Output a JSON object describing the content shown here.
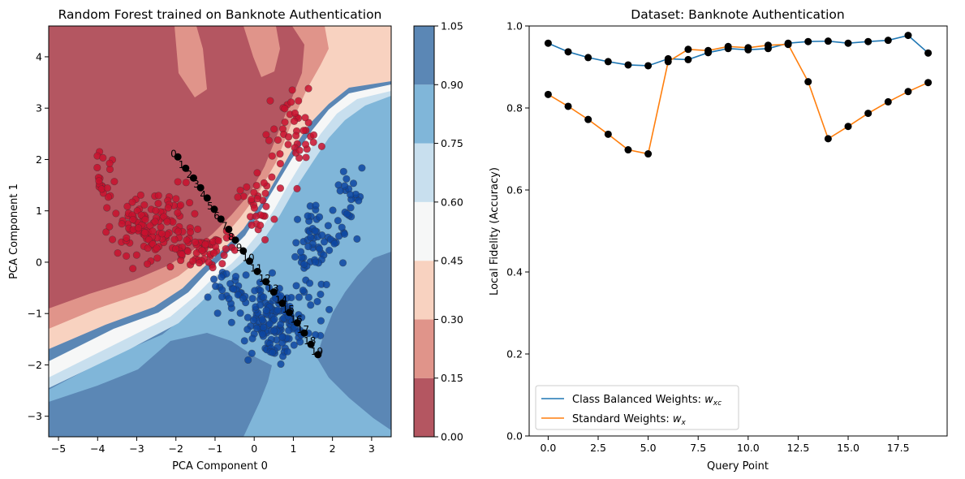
{
  "chart_data": [
    {
      "type": "contour-scatter",
      "title": "Random Forest trained on Banknote Authentication",
      "xlabel": "PCA Component 0",
      "ylabel": "PCA Component 1",
      "xlim": [
        -5.25,
        3.5
      ],
      "ylim": [
        -3.4,
        4.6
      ],
      "xticks": [
        -5,
        -4,
        -3,
        -2,
        -1,
        0,
        1,
        2,
        3
      ],
      "yticks": [
        -3,
        -2,
        -1,
        0,
        1,
        2,
        3,
        4
      ],
      "colorbar": {
        "levels": [
          0.0,
          0.15,
          0.3,
          0.45,
          0.6,
          0.75,
          0.9,
          1.05
        ],
        "tick_labels": [
          "0.00",
          "0.15",
          "0.30",
          "0.45",
          "0.60",
          "0.75",
          "0.90",
          "1.05"
        ],
        "colors": [
          "#b45661",
          "#e0948a",
          "#f8d2c0",
          "#f6f7f7",
          "#c8dfee",
          "#80b6d9",
          "#5b87b5"
        ]
      },
      "point_colors": {
        "class_0": "#c8102e",
        "class_1": "#0d47a1",
        "query": "#000000"
      },
      "query_points": {
        "labels": [
          "0",
          "1",
          "2",
          "3",
          "4",
          "5",
          "6",
          "7",
          "8",
          "9",
          "10",
          "11",
          "12",
          "13",
          "14",
          "15",
          "16",
          "17",
          "18",
          "19"
        ],
        "x": [
          -1.95,
          -1.75,
          -1.55,
          -1.37,
          -1.2,
          -1.02,
          -0.85,
          -0.65,
          -0.48,
          -0.28,
          -0.12,
          0.08,
          0.3,
          0.5,
          0.72,
          0.9,
          1.1,
          1.28,
          1.45,
          1.63
        ],
        "y": [
          2.05,
          1.83,
          1.64,
          1.45,
          1.25,
          1.03,
          0.84,
          0.64,
          0.43,
          0.22,
          0.02,
          -0.18,
          -0.38,
          -0.58,
          -0.8,
          -0.98,
          -1.18,
          -1.38,
          -1.6,
          -1.8
        ]
      }
    },
    {
      "type": "line",
      "title": "Dataset: Banknote Authentication",
      "xlabel": "Query Point",
      "ylabel": "Local Fidelity (Accuracy)",
      "xlim": [
        -0.95,
        19.95
      ],
      "ylim": [
        0.0,
        1.0
      ],
      "xticks": [
        0.0,
        2.5,
        5.0,
        7.5,
        10.0,
        12.5,
        15.0,
        17.5
      ],
      "xtick_labels": [
        "0.0",
        "2.5",
        "5.0",
        "7.5",
        "10.0",
        "12.5",
        "15.0",
        "17.5"
      ],
      "yticks": [
        0.0,
        0.2,
        0.4,
        0.6,
        0.8,
        1.0
      ],
      "ytick_labels": [
        "0.0",
        "0.2",
        "0.4",
        "0.6",
        "0.8",
        "1.0"
      ],
      "legend_position": "lower-left",
      "x": [
        0,
        1,
        2,
        3,
        4,
        5,
        6,
        7,
        8,
        9,
        10,
        11,
        12,
        13,
        14,
        15,
        16,
        17,
        18,
        19
      ],
      "series": [
        {
          "name": "Class Balanced Weights: ",
          "math": "w",
          "sub": "xc",
          "color": "#1f77b4",
          "values": [
            0.958,
            0.937,
            0.923,
            0.913,
            0.905,
            0.903,
            0.92,
            0.918,
            0.935,
            0.945,
            0.942,
            0.945,
            0.958,
            0.962,
            0.963,
            0.958,
            0.962,
            0.965,
            0.977,
            0.934
          ]
        },
        {
          "name": "Standard Weights: ",
          "math": "w",
          "sub": "x",
          "color": "#ff7f0e",
          "values": [
            0.833,
            0.804,
            0.772,
            0.736,
            0.698,
            0.688,
            0.913,
            0.943,
            0.94,
            0.95,
            0.947,
            0.953,
            0.955,
            0.864,
            0.725,
            0.755,
            0.787,
            0.815,
            0.84,
            0.862
          ]
        }
      ],
      "marker_color": "#000000"
    }
  ]
}
